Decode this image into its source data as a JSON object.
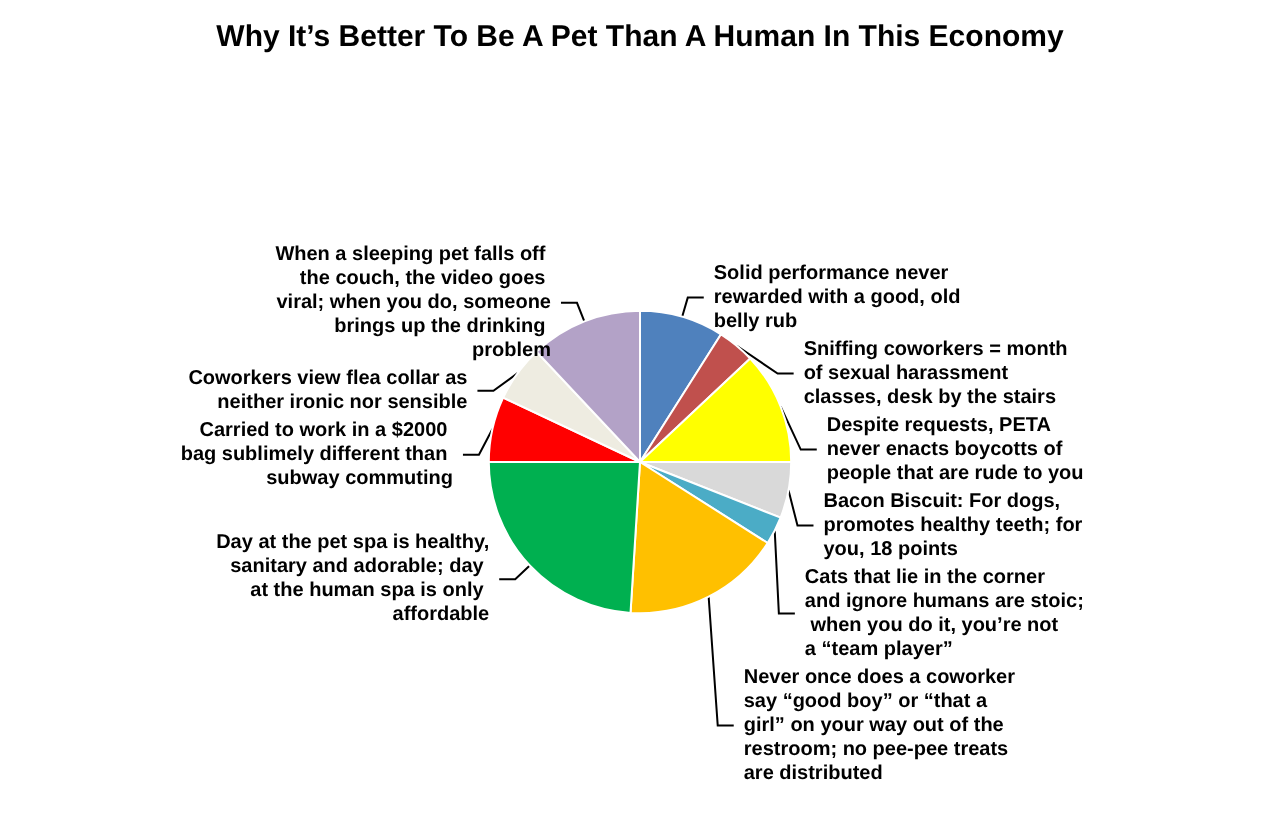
{
  "chart_data": {
    "type": "pie",
    "title": "Why It’s Better To Be A Pet Than A Human In This Economy",
    "categories": [
      "Solid performance never rewarded with a good, old belly rub",
      "Sniffing coworkers = month of sexual harassment classes, desk by the stairs",
      "Despite requests, PETA never enacts boycotts of people that are rude to you",
      "Bacon Biscuit: For dogs, promotes healthy teeth; for you, 18 points",
      "Cats that lie in the corner and ignore humans are stoic; when you do it, you’re not a “team player”",
      "Never once does a coworker say “good boy” or “that a girl” on your way out of the restroom; no pee-pee treats are distributed",
      "Day at the pet spa is healthy, sanitary and adorable; day at the human spa is only affordable",
      "Carried to work in a $2000 bag sublimely different than subway commuting",
      "Coworkers view flea collar as neither ironic nor sensible",
      "When a sleeping pet falls off the couch, the video goes viral; when you do, someone brings up the drinking problem"
    ],
    "values": [
      9,
      4,
      12,
      6,
      3,
      17,
      24,
      7,
      6,
      12
    ],
    "colors": [
      "#4f81bd",
      "#c0504d",
      "#ffff00",
      "#d9d9d9",
      "#4bacc6",
      "#ffc000",
      "#00b050",
      "#ff0000",
      "#eeece1",
      "#b3a2c7"
    ]
  }
}
